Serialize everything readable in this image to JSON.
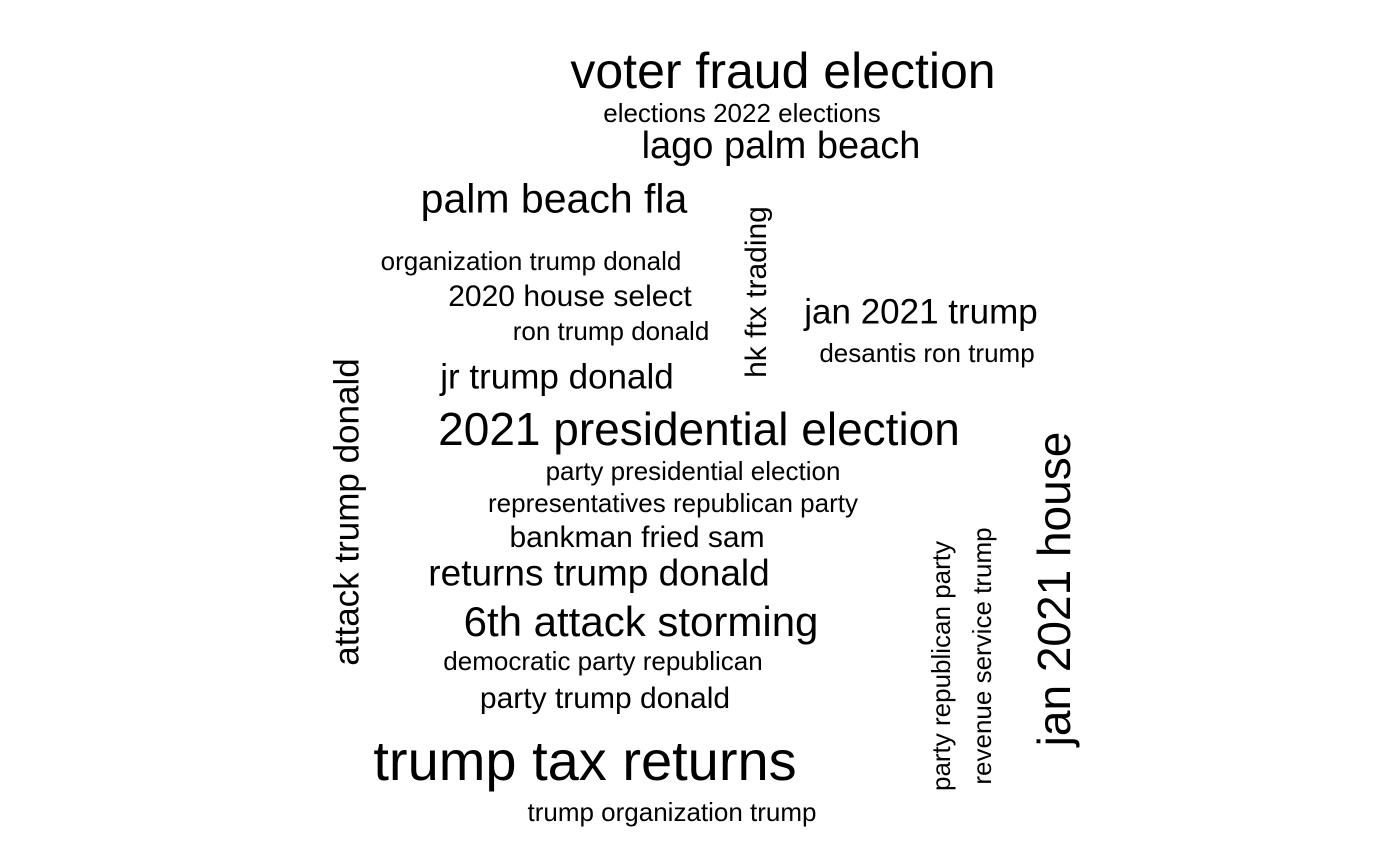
{
  "word_cloud": {
    "horizontal_phrases": [
      "voter fraud election",
      "elections 2022 elections",
      "lago palm beach",
      "palm beach fla",
      "organization trump donald",
      "2020 house select",
      "ron trump donald",
      "jan 2021 trump",
      "desantis ron trump",
      "jr trump donald",
      "2021 presidential election",
      "party presidential election",
      "representatives republican party",
      "bankman fried sam",
      "returns trump donald",
      "6th attack storming",
      "democratic party republican",
      "party trump donald",
      "trump tax returns",
      "trump organization trump"
    ],
    "vertical_phrases": [
      "hk ftx trading",
      "attack trump donald",
      "jan 2021 house",
      "party republican party",
      "revenue service trump"
    ],
    "text_color": "#000000",
    "background_color": "#ffffff"
  }
}
